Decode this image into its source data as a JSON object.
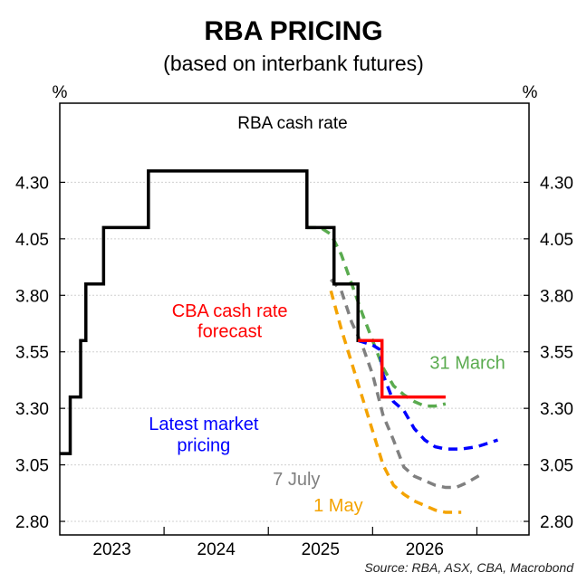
{
  "chart_data": {
    "type": "line",
    "title": "RBA PRICING",
    "subtitle": "(based on interbank futures)",
    "inner_title": "RBA cash rate",
    "ylabel_left": "%",
    "ylabel_right": "%",
    "ylim": [
      2.74,
      4.65
    ],
    "yticks": [
      "4.30",
      "4.05",
      "3.80",
      "3.55",
      "3.30",
      "3.05",
      "2.80"
    ],
    "ytick_values": [
      4.3,
      4.05,
      3.8,
      3.55,
      3.3,
      3.05,
      2.8
    ],
    "xlim": [
      2022.5,
      2027.0
    ],
    "xticks": [
      "2023",
      "2024",
      "2025",
      "2026"
    ],
    "xtick_centers": [
      2023.0,
      2024.0,
      2025.0,
      2026.0
    ],
    "year_boundaries": [
      2023.5,
      2024.5,
      2025.5,
      2026.5
    ],
    "grid": true,
    "source": "Source: RBA, ASX, CBA, Macrobond",
    "series": [
      {
        "name": "RBA cash rate",
        "color": "#000000",
        "style": "solid",
        "step": true,
        "x": [
          2022.5,
          2022.6,
          2022.7,
          2022.75,
          2022.92,
          2023.0,
          2023.35,
          2023.85,
          2024.87,
          2025.13,
          2025.36,
          2025.5
        ],
        "y": [
          3.1,
          3.35,
          3.6,
          3.85,
          4.1,
          4.1,
          4.35,
          4.35,
          4.1,
          3.85,
          3.6,
          3.6
        ]
      },
      {
        "name": "CBA cash rate forecast",
        "color": "#ff0000",
        "style": "solid",
        "step": true,
        "x": [
          2025.36,
          2025.59,
          2026.2
        ],
        "y": [
          3.6,
          3.35,
          3.35
        ]
      },
      {
        "name": "31 March",
        "color": "#5aab4f",
        "style": "dashed",
        "x": [
          2024.87,
          2025.0,
          2025.1,
          2025.2,
          2025.3,
          2025.4,
          2025.5,
          2025.6,
          2025.7,
          2025.8,
          2025.9,
          2026.0,
          2026.1,
          2026.2
        ],
        "y": [
          4.1,
          4.1,
          4.07,
          3.98,
          3.85,
          3.72,
          3.6,
          3.48,
          3.4,
          3.36,
          3.33,
          3.31,
          3.31,
          3.32
        ]
      },
      {
        "name": "Latest market pricing",
        "color": "#0000ff",
        "style": "dashed",
        "x": [
          2025.36,
          2025.5,
          2025.57,
          2025.6,
          2025.7,
          2025.8,
          2025.9,
          2026.0,
          2026.1,
          2026.2,
          2026.35,
          2026.5,
          2026.7
        ],
        "y": [
          3.6,
          3.58,
          3.56,
          3.45,
          3.33,
          3.29,
          3.21,
          3.16,
          3.13,
          3.12,
          3.12,
          3.13,
          3.16
        ]
      },
      {
        "name": "7 July",
        "color": "#808080",
        "style": "dashed",
        "x": [
          2025.1,
          2025.2,
          2025.3,
          2025.4,
          2025.5,
          2025.6,
          2025.7,
          2025.8,
          2025.9,
          2026.0,
          2026.1,
          2026.2,
          2026.3,
          2026.4,
          2026.55
        ],
        "y": [
          3.87,
          3.82,
          3.68,
          3.58,
          3.45,
          3.27,
          3.16,
          3.04,
          3.0,
          2.98,
          2.96,
          2.95,
          2.95,
          2.97,
          3.01
        ]
      },
      {
        "name": "1 May",
        "color": "#f4a300",
        "style": "dashed",
        "x": [
          2025.1,
          2025.2,
          2025.3,
          2025.4,
          2025.5,
          2025.6,
          2025.7,
          2025.8,
          2025.9,
          2026.0,
          2026.1,
          2026.2,
          2026.35
        ],
        "y": [
          3.82,
          3.65,
          3.5,
          3.35,
          3.2,
          3.05,
          2.96,
          2.92,
          2.89,
          2.87,
          2.85,
          2.84,
          2.84
        ]
      }
    ],
    "annotations": [
      {
        "text": "CBA cash rate",
        "color": "#ff0000",
        "x": 2024.13,
        "y": 3.705
      },
      {
        "text": "forecast",
        "color": "#ff0000",
        "x": 2024.13,
        "y": 3.615
      },
      {
        "text": "31 March",
        "color": "#5aab4f",
        "x": 2026.41,
        "y": 3.475
      },
      {
        "text": "Latest market",
        "color": "#0000ff",
        "x": 2023.88,
        "y": 3.205
      },
      {
        "text": "pricing",
        "color": "#0000ff",
        "x": 2023.88,
        "y": 3.11
      },
      {
        "text": "7 July",
        "color": "#808080",
        "x": 2024.77,
        "y": 2.96
      },
      {
        "text": "1 May",
        "color": "#f4a300",
        "x": 2025.17,
        "y": 2.845
      }
    ]
  }
}
